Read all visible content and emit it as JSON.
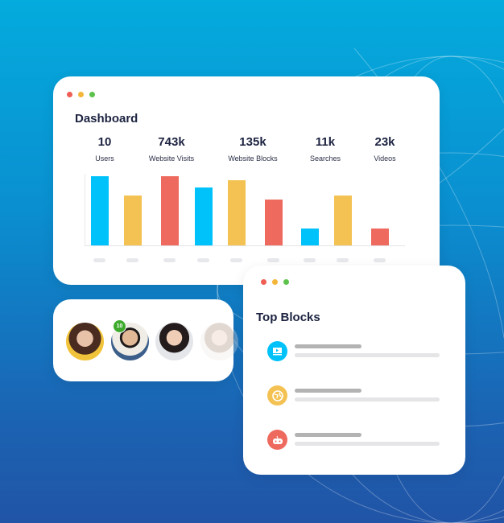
{
  "colors": {
    "cyan": "#00c2fa",
    "yellow": "#f4c253",
    "red": "#ee6a5e",
    "green": "#3daa2b",
    "dot_red": "#ee5e55",
    "dot_yellow": "#f3b63a",
    "dot_green": "#5cc24b"
  },
  "dashboard": {
    "title": "Dashboard",
    "stats": [
      {
        "value": "10",
        "label": "Users"
      },
      {
        "value": "743k",
        "label": "Website Visits"
      },
      {
        "value": "135k",
        "label": "Website Blocks"
      },
      {
        "value": "11k",
        "label": "Searches"
      },
      {
        "value": "23k",
        "label": "Videos"
      }
    ],
    "chart_data": {
      "type": "bar",
      "values_percent": [
        98,
        70,
        98,
        82,
        92,
        65,
        24,
        70,
        24
      ],
      "colors": [
        "cyan",
        "yellow",
        "red",
        "cyan",
        "yellow",
        "red",
        "cyan",
        "yellow",
        "red"
      ]
    }
  },
  "users": {
    "badge": "10",
    "avatars": [
      "avatar-woman-1",
      "avatar-man",
      "avatar-woman-2",
      "avatar-woman-faded"
    ]
  },
  "top_blocks": {
    "title": "Top Blocks",
    "items": [
      {
        "icon": "video-icon",
        "color": "cyan"
      },
      {
        "icon": "globe-icon",
        "color": "yellow"
      },
      {
        "icon": "game-controller-icon",
        "color": "red"
      }
    ]
  }
}
